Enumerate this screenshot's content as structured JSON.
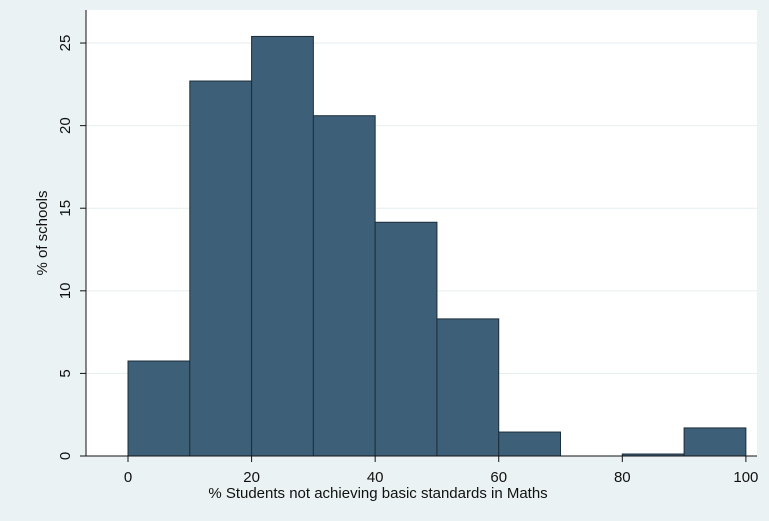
{
  "chart_data": {
    "type": "histogram",
    "xlabel": "% Students not achieving basic standards in Maths",
    "ylabel": "% of schools",
    "bins": [
      0,
      10,
      20,
      30,
      40,
      50,
      60,
      70,
      80,
      90,
      100
    ],
    "counts": [
      5.75,
      22.7,
      25.4,
      20.6,
      14.15,
      8.3,
      1.45,
      0,
      0.12,
      1.7
    ],
    "color": "#3e5f78",
    "xlim": [
      -6.8,
      101.8
    ],
    "xticks": [
      0,
      20,
      40,
      60,
      80,
      100
    ],
    "ylim": [
      0,
      27
    ],
    "yticks": [
      0,
      5,
      10,
      15,
      20,
      25
    ],
    "grid": true
  }
}
